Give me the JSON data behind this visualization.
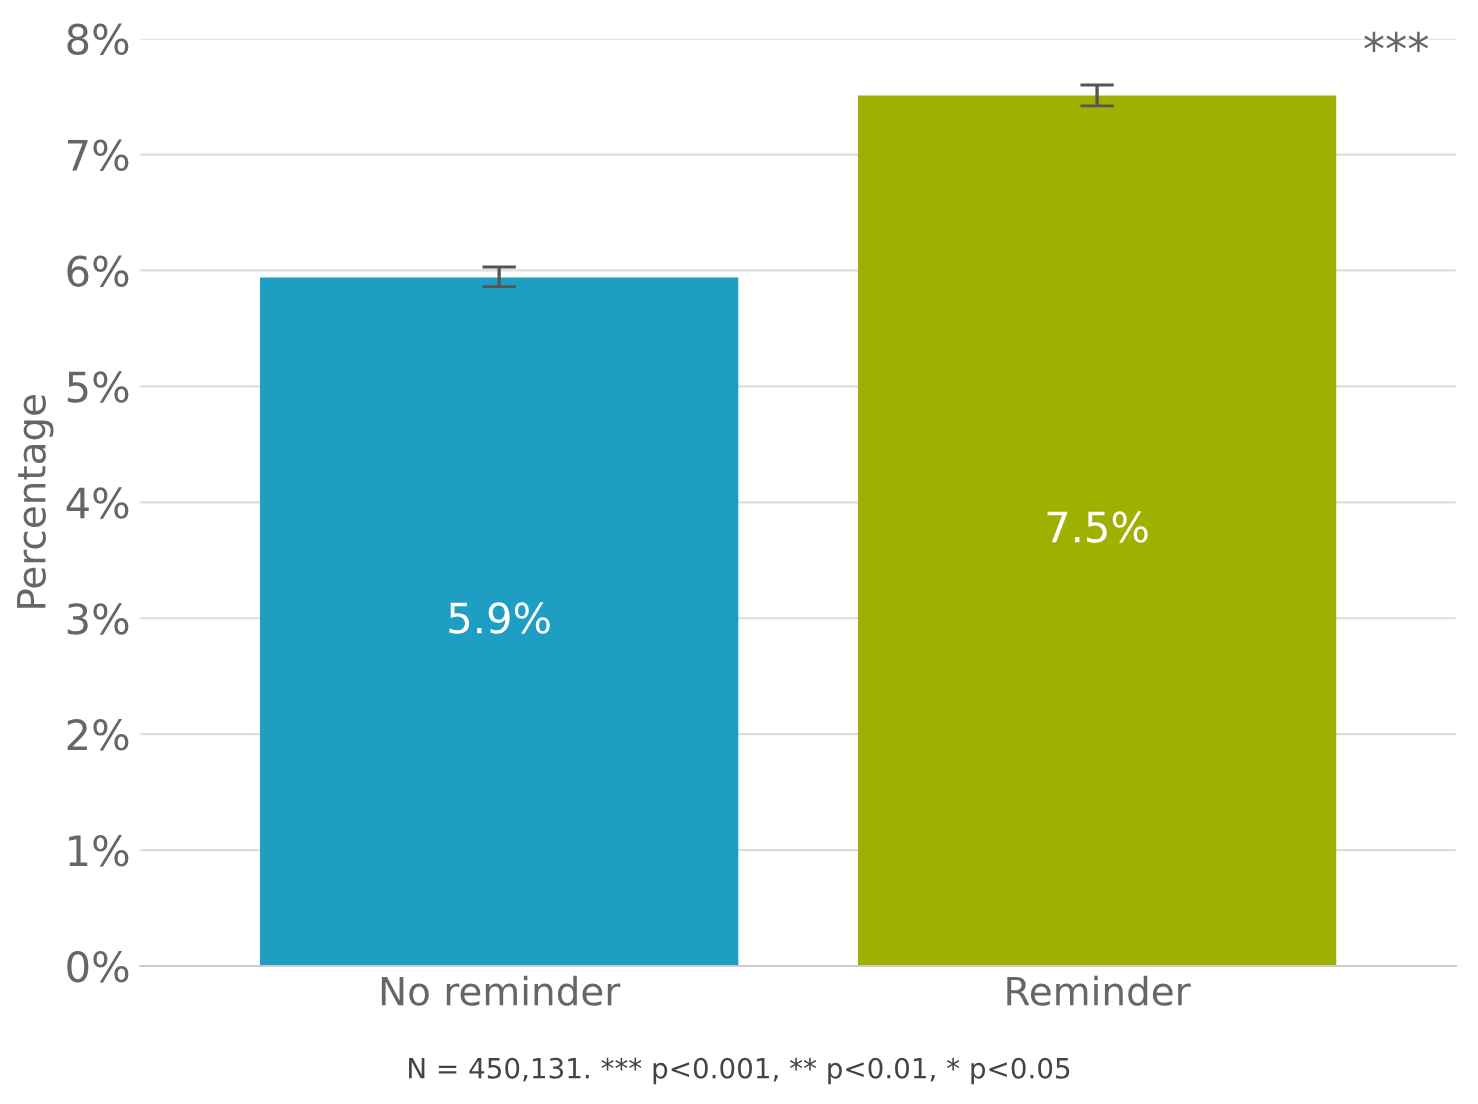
{
  "chart_data": {
    "type": "bar",
    "ylabel": "Percentage",
    "categories": [
      "No reminder",
      "Reminder"
    ],
    "values": [
      5.94,
      7.51
    ],
    "colors": [
      "#1f9ec4",
      "#a0b000"
    ],
    "errors": [
      [
        5.86,
        6.03
      ],
      [
        7.42,
        7.6
      ]
    ],
    "value_labels": [
      "5.9%",
      "7.5%"
    ],
    "ylim": [
      0,
      8
    ],
    "yticks": [
      {
        "value": 0,
        "label": "0%"
      },
      {
        "value": 1,
        "label": "1%"
      },
      {
        "value": 2,
        "label": "2%"
      },
      {
        "value": 3,
        "label": "3%"
      },
      {
        "value": 4,
        "label": "4%"
      },
      {
        "value": 5,
        "label": "5%"
      },
      {
        "value": 6,
        "label": "6%"
      },
      {
        "value": 7,
        "label": "7%"
      },
      {
        "value": 8,
        "label": "8%"
      }
    ],
    "grid": "y",
    "annotations": [
      "***",
      "N = 450,131. *** p<0.001, ** p<0.01, * p<0.05"
    ]
  }
}
